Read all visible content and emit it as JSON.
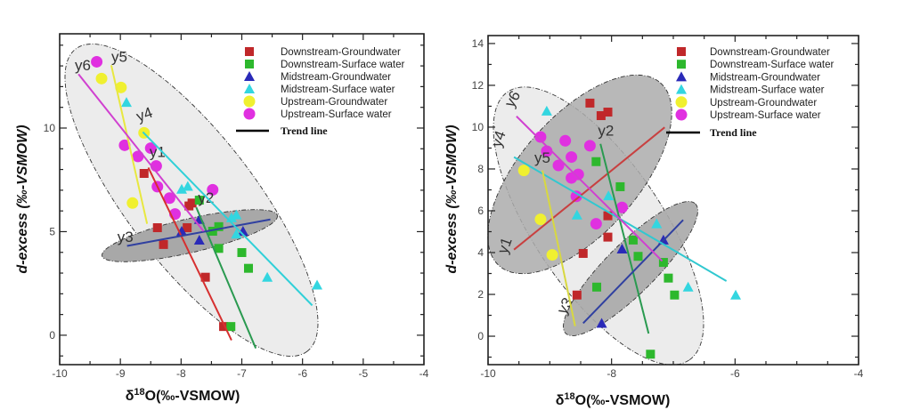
{
  "chart_data": [
    {
      "type": "scatter",
      "xlabel_parts": [
        "δ",
        "18",
        "O(‰-VSMOW)"
      ],
      "ylabel": "d-excess (‰-VSMOW)",
      "xlim": [
        -10,
        -4
      ],
      "ylim": [
        -1.42,
        14.55
      ],
      "xticks": [
        -10,
        -9,
        -8,
        -7,
        -6,
        -5,
        -4
      ],
      "yticks": [
        0,
        5,
        10
      ],
      "legend_position": "top-right",
      "trend_label": "Trend line",
      "series": [
        {
          "name": "Downstream-Groundwater",
          "marker": "square",
          "color": "#c0282a",
          "points": [
            [
              -8.61,
              7.81
            ],
            [
              -8.39,
              5.19
            ],
            [
              -8.29,
              4.38
            ],
            [
              -7.9,
              5.19
            ],
            [
              -7.87,
              6.24
            ],
            [
              -7.82,
              6.38
            ],
            [
              -7.6,
              2.8
            ],
            [
              -7.3,
              0.42
            ]
          ]
        },
        {
          "name": "Downstream-Surface water",
          "marker": "square",
          "color": "#2db82d",
          "points": [
            [
              -7.7,
              6.52
            ],
            [
              -7.38,
              5.24
            ],
            [
              -7.48,
              5.02
            ],
            [
              -7.38,
              4.19
            ],
            [
              -7.0,
              3.99
            ],
            [
              -6.89,
              3.23
            ],
            [
              -7.18,
              0.42
            ]
          ]
        },
        {
          "name": "Midstream-Groundwater",
          "marker": "triangle",
          "color": "#2a2ab8",
          "points": [
            [
              -7.99,
              5.02
            ],
            [
              -7.7,
              4.59
            ],
            [
              -7.7,
              5.59
            ],
            [
              -6.98,
              5.02
            ]
          ]
        },
        {
          "name": "Midstream-Surface water",
          "marker": "triangle",
          "color": "#33d6e0",
          "points": [
            [
              -8.9,
              11.24
            ],
            [
              -7.99,
              7.05
            ],
            [
              -7.89,
              7.19
            ],
            [
              -7.17,
              5.67
            ],
            [
              -7.09,
              5.81
            ],
            [
              -7.09,
              4.88
            ],
            [
              -6.58,
              2.8
            ],
            [
              -5.76,
              2.42
            ]
          ]
        },
        {
          "name": "Upstream-Groundwater",
          "marker": "circle",
          "color": "#f0f030",
          "points": [
            [
              -9.31,
              12.39
            ],
            [
              -8.99,
              11.96
            ],
            [
              -8.61,
              9.77
            ],
            [
              -8.8,
              6.38
            ]
          ]
        },
        {
          "name": "Upstream-Surface water",
          "marker": "circle",
          "color": "#e030e0",
          "points": [
            [
              -9.39,
              13.2
            ],
            [
              -8.93,
              9.17
            ],
            [
              -8.71,
              8.63
            ],
            [
              -8.5,
              9.03
            ],
            [
              -8.41,
              8.17
            ],
            [
              -8.39,
              7.17
            ],
            [
              -8.19,
              6.62
            ],
            [
              -8.1,
              5.85
            ],
            [
              -7.48,
              7.02
            ]
          ]
        }
      ],
      "trend_lines": [
        {
          "label": "y1",
          "color": "#d63030",
          "from": [
            -8.54,
            8.09
          ],
          "to": [
            -7.17,
            -0.24
          ],
          "label_at": [
            -8.52,
            8.6
          ]
        },
        {
          "label": "y2",
          "color": "#2a9a50",
          "from": [
            -7.75,
            6.17
          ],
          "to": [
            -6.77,
            -0.63
          ],
          "label_at": [
            -7.72,
            6.4
          ]
        },
        {
          "label": "y3",
          "color": "#3040a0",
          "from": [
            -8.89,
            4.31
          ],
          "to": [
            -6.53,
            5.59
          ],
          "label_at": [
            -9.05,
            4.5
          ]
        },
        {
          "label": "y4",
          "color": "#30d0d8",
          "from": [
            -8.63,
            9.81
          ],
          "to": [
            -5.84,
            1.44
          ],
          "label_at": [
            -8.7,
            10.3
          ]
        },
        {
          "label": "y5",
          "color": "#e8e840",
          "from": [
            -9.15,
            13.03
          ],
          "to": [
            -8.56,
            5.38
          ],
          "label_at": [
            -9.15,
            13.2
          ]
        },
        {
          "label": "y6",
          "color": "#d040d0",
          "from": [
            -9.69,
            12.6
          ],
          "to": [
            -7.63,
            5.02
          ],
          "label_at": [
            -9.75,
            12.8
          ]
        }
      ]
    },
    {
      "type": "scatter",
      "xlabel_parts": [
        "δ",
        "18",
        "O(‰-VSMOW)"
      ],
      "ylabel": "d-excess (‰-VSMOW)",
      "xlim": [
        -10,
        -4
      ],
      "ylim": [
        -1.36,
        14.38
      ],
      "xticks": [
        -10,
        -8,
        -6,
        -4
      ],
      "yticks": [
        0,
        2,
        4,
        6,
        8,
        10,
        12,
        14
      ],
      "legend_position": "top-right",
      "trend_label": "Trend line",
      "series": [
        {
          "name": "Downstream-Groundwater",
          "marker": "square",
          "color": "#c0282a",
          "points": [
            [
              -8.35,
              11.15
            ],
            [
              -8.17,
              10.55
            ],
            [
              -8.06,
              10.72
            ],
            [
              -8.06,
              5.76
            ],
            [
              -8.06,
              4.74
            ],
            [
              -8.46,
              3.96
            ],
            [
              -8.56,
              1.97
            ]
          ]
        },
        {
          "name": "Downstream-Surface water",
          "marker": "square",
          "color": "#2db82d",
          "points": [
            [
              -8.25,
              8.35
            ],
            [
              -7.86,
              7.15
            ],
            [
              -7.65,
              4.6
            ],
            [
              -7.57,
              3.82
            ],
            [
              -7.16,
              3.53
            ],
            [
              -7.08,
              2.78
            ],
            [
              -6.98,
              1.97
            ],
            [
              -8.24,
              2.35
            ],
            [
              -7.37,
              -0.86
            ]
          ]
        },
        {
          "name": "Midstream-Groundwater",
          "marker": "triangle",
          "color": "#2a2ab8",
          "points": [
            [
              -7.83,
              4.17
            ],
            [
              -7.16,
              4.6
            ],
            [
              -8.16,
              0.62
            ]
          ]
        },
        {
          "name": "Midstream-Surface water",
          "marker": "triangle",
          "color": "#33d6e0",
          "points": [
            [
              -9.05,
              10.77
            ],
            [
              -8.56,
              5.8
            ],
            [
              -8.05,
              6.72
            ],
            [
              -7.27,
              5.38
            ],
            [
              -6.76,
              2.35
            ],
            [
              -5.99,
              1.97
            ]
          ]
        },
        {
          "name": "Upstream-Groundwater",
          "marker": "circle",
          "color": "#f0f030",
          "points": [
            [
              -9.42,
              7.93
            ],
            [
              -9.15,
              5.59
            ],
            [
              -8.96,
              3.89
            ]
          ]
        },
        {
          "name": "Upstream-Surface water",
          "marker": "circle",
          "color": "#e030e0",
          "points": [
            [
              -9.15,
              9.53
            ],
            [
              -9.05,
              8.85
            ],
            [
              -8.75,
              9.35
            ],
            [
              -8.65,
              8.57
            ],
            [
              -8.86,
              8.17
            ],
            [
              -8.65,
              7.57
            ],
            [
              -8.54,
              7.74
            ],
            [
              -8.57,
              6.69
            ],
            [
              -8.35,
              9.11
            ],
            [
              -8.25,
              5.38
            ],
            [
              -7.83,
              6.16
            ]
          ]
        }
      ],
      "trend_lines": [
        {
          "label": "y1",
          "color": "#c84040",
          "from": [
            -9.58,
            4.14
          ],
          "to": [
            -7.14,
            9.99
          ],
          "label_at": [
            -9.93,
            3.9
          ]
        },
        {
          "label": "y2",
          "color": "#2a9a50",
          "from": [
            -8.18,
            9.2
          ],
          "to": [
            -7.4,
            0.13
          ],
          "label_at": [
            -8.22,
            9.6
          ]
        },
        {
          "label": "y3",
          "color": "#3040a0",
          "from": [
            -8.46,
            0.62
          ],
          "to": [
            -6.84,
            5.56
          ],
          "label_at": [
            -8.75,
            1.0
          ]
        },
        {
          "label": "y4",
          "color": "#30c8d0",
          "from": [
            -9.58,
            8.57
          ],
          "to": [
            -6.14,
            2.64
          ],
          "label_at": [
            -9.8,
            9.0
          ]
        },
        {
          "label": "y5",
          "color": "#d8d840",
          "from": [
            -9.12,
            7.93
          ],
          "to": [
            -8.59,
            0.48
          ],
          "label_at": [
            -9.25,
            8.3
          ]
        },
        {
          "label": "y6",
          "color": "#d040d0",
          "from": [
            -9.54,
            10.52
          ],
          "to": [
            -7.18,
            3.6
          ],
          "label_at": [
            -9.6,
            10.9
          ]
        }
      ]
    }
  ]
}
